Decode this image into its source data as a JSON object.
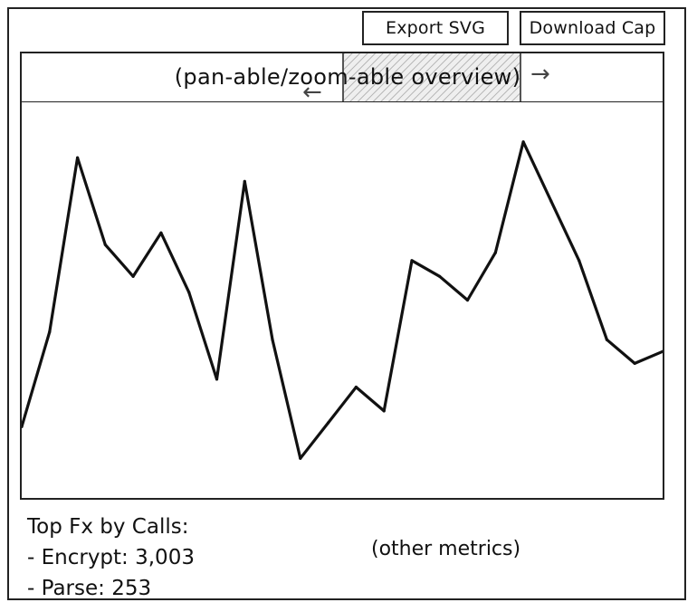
{
  "toolbar": {
    "export_label": "Export SVG",
    "download_label": "Download Cap"
  },
  "overview": {
    "label": "(pan-able/zoom-able overview)",
    "pan_right_glyph": "→",
    "pan_left_glyph": "←"
  },
  "chart_data": {
    "type": "line",
    "title": "",
    "xlabel": "",
    "ylabel": "",
    "series": [
      {
        "values": [
          0.18,
          0.42,
          0.86,
          0.64,
          0.56,
          0.67,
          0.52,
          0.3,
          0.8,
          0.4,
          0.1,
          0.19,
          0.28,
          0.22,
          0.6,
          0.56,
          0.5,
          0.62,
          0.9,
          0.75,
          0.6,
          0.4,
          0.34,
          0.37
        ]
      }
    ],
    "ylim": [
      0,
      1
    ],
    "grid": false,
    "legend": "none"
  },
  "metrics": {
    "heading": "Top Fx by Calls:",
    "items": [
      {
        "label": "- Encrypt: 3,003"
      },
      {
        "label": "- Parse: 253"
      }
    ],
    "other_label": "(other metrics)"
  }
}
